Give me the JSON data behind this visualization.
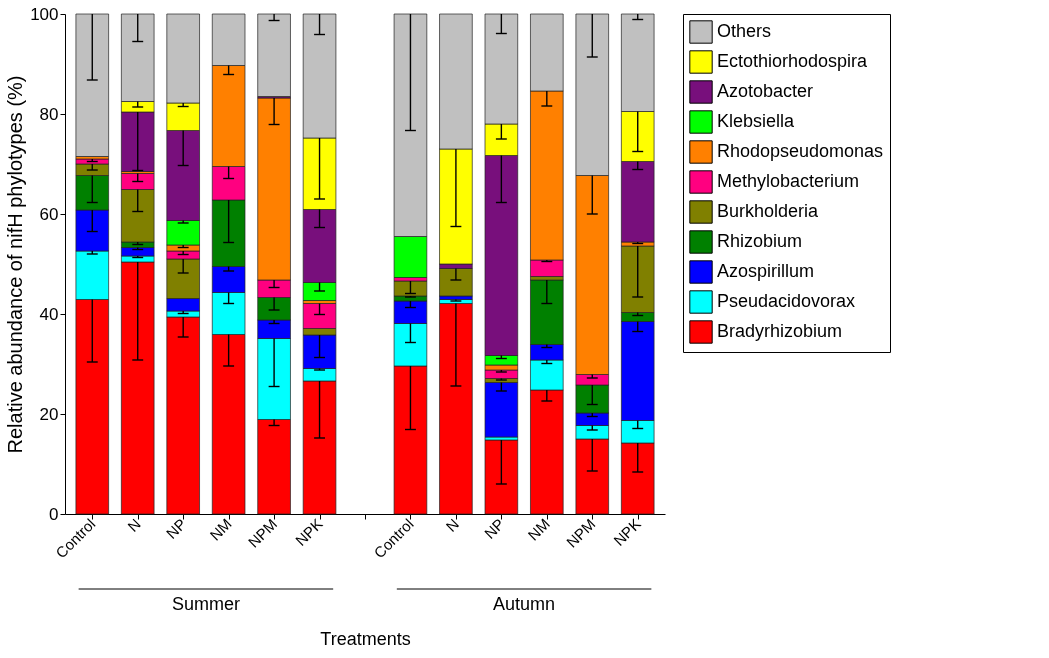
{
  "chart_data": {
    "type": "bar",
    "stacked": true,
    "xlabel": "Treatments",
    "ylabel": "Relative abundance of nifH phylotypes (%)",
    "categories": [
      "Control",
      "N",
      "NP",
      "NM",
      "NPM",
      "NPK",
      null,
      "Control",
      "N",
      "NP",
      "NM",
      "NPM",
      "NPK"
    ],
    "ylim": [
      0,
      100
    ],
    "yticks": [
      0,
      20,
      40,
      60,
      80,
      100
    ],
    "grid": false,
    "legend": "right",
    "annotations": [
      "Summer",
      "Autumn"
    ],
    "series": [
      {
        "name": "Bradyrhizobium",
        "color": "#ff0000",
        "values": [
          42.9,
          50.4,
          39.4,
          35.9,
          18.9,
          26.6,
          null,
          29.6,
          42.1,
          14.8,
          24.8,
          15.0,
          14.2
        ],
        "errors": [
          [
            30.4,
            42.9
          ],
          [
            30.8,
            50.4
          ],
          [
            35.4,
            39.4
          ],
          [
            29.6,
            35.9
          ],
          [
            17.7,
            18.9
          ],
          [
            15.2,
            26.6
          ],
          null,
          [
            16.9,
            29.6
          ],
          [
            25.6,
            42.1
          ],
          [
            6.0,
            14.8
          ],
          [
            22.6,
            24.8
          ],
          [
            8.6,
            15.0
          ],
          [
            8.4,
            14.2
          ]
        ]
      },
      {
        "name": "Pseudacidovorax",
        "color": "#00ffff",
        "values": [
          9.7,
          1.2,
          1.2,
          8.4,
          16.2,
          2.5,
          null,
          8.5,
          0.8,
          0.6,
          6.0,
          2.7,
          4.5
        ],
        "errors": [
          [
            52.0,
            52.6
          ],
          [
            51.3,
            51.6
          ],
          [
            40.1,
            40.6
          ],
          [
            42.1,
            44.3
          ],
          [
            25.5,
            35.1
          ],
          [
            28.8,
            29.1
          ],
          null,
          [
            34.3,
            38.1
          ],
          [
            42.6,
            42.9
          ],
          null,
          [
            30.1,
            30.8
          ],
          [
            16.8,
            17.7
          ],
          [
            17.1,
            18.7
          ]
        ]
      },
      {
        "name": "Azospirillum",
        "color": "#0000ff",
        "values": [
          8.2,
          1.7,
          2.5,
          5.2,
          3.7,
          6.7,
          null,
          4.5,
          0.7,
          10.9,
          3.1,
          2.5,
          19.8
        ],
        "errors": [
          [
            56.5,
            60.8
          ],
          [
            52.9,
            53.3
          ],
          null,
          [
            48.6,
            49.5
          ],
          [
            38.1,
            38.8
          ],
          [
            31.3,
            35.8
          ],
          null,
          [
            41.3,
            42.6
          ],
          null,
          [
            24.6,
            26.3
          ],
          [
            33.3,
            33.9
          ],
          [
            19.5,
            20.2
          ],
          [
            36.5,
            38.5
          ]
        ]
      },
      {
        "name": "Rhizobium",
        "color": "#008000",
        "values": [
          6.9,
          1.1,
          0,
          13.3,
          4.5,
          0,
          null,
          1.0,
          0,
          0,
          12.9,
          5.6,
          1.8
        ],
        "errors": [
          [
            62.3,
            67.7
          ],
          [
            53.9,
            54.4
          ],
          null,
          [
            54.3,
            62.8
          ],
          [
            40.8,
            43.3
          ],
          null,
          null,
          [
            43.4,
            43.6
          ],
          null,
          null,
          [
            42.1,
            46.8
          ],
          [
            21.9,
            25.8
          ],
          [
            39.7,
            40.3
          ]
        ]
      },
      {
        "name": "Burkholderia",
        "color": "#808000",
        "values": [
          2.3,
          10.5,
          7.9,
          0,
          0,
          1.3,
          null,
          3.0,
          5.5,
          0.8,
          0.7,
          0,
          13.3
        ],
        "errors": [
          [
            68.8,
            70.0
          ],
          [
            60.5,
            64.9
          ],
          [
            48.2,
            51.0
          ],
          null,
          null,
          null,
          null,
          [
            44.1,
            46.6
          ],
          [
            46.8,
            49.1
          ],
          [
            26.8,
            27.1
          ],
          null,
          null,
          [
            43.4,
            53.6
          ]
        ]
      },
      {
        "name": "Methylobacterium",
        "color": "#ff0080",
        "values": [
          1.0,
          3.2,
          1.6,
          6.7,
          3.5,
          5.0,
          null,
          0.7,
          0,
          1.7,
          3.3,
          2.1,
          0
        ],
        "errors": [
          [
            70.5,
            71.0
          ],
          [
            66.5,
            68.1
          ],
          [
            51.9,
            52.6
          ],
          [
            67.1,
            69.5
          ],
          [
            45.3,
            46.8
          ],
          [
            39.9,
            42.1
          ],
          null,
          null,
          null,
          [
            28.4,
            28.8
          ],
          [
            50.5,
            50.8
          ],
          [
            27.2,
            27.9
          ],
          null
        ]
      },
      {
        "name": "Rhodopseudomonas",
        "color": "#ff8000",
        "values": [
          0.5,
          0.4,
          1.2,
          20.2,
          36.4,
          0.6,
          null,
          null,
          0,
          1.0,
          33.8,
          39.8,
          0.8
        ],
        "errors": [
          null,
          null,
          [
            53.3,
            53.8
          ],
          [
            87.9,
            89.7
          ],
          [
            77.9,
            83.2
          ],
          null,
          null,
          null,
          null,
          null,
          [
            81.6,
            84.6
          ],
          [
            60.0,
            67.7
          ],
          [
            54.1,
            54.4
          ]
        ]
      },
      {
        "name": "Klebsiella",
        "color": "#00ff00",
        "values": [
          0,
          0,
          4.9,
          0,
          0,
          3.6,
          null,
          8.2,
          0,
          1.9,
          0,
          0,
          0
        ],
        "errors": [
          null,
          null,
          [
            58.2,
            58.7
          ],
          null,
          null,
          [
            44.6,
            46.3
          ],
          null,
          null,
          null,
          [
            31.1,
            31.7
          ],
          null,
          null,
          null
        ]
      },
      {
        "name": "Azotobacter",
        "color": "#780f7c",
        "values": [
          null,
          11.9,
          18.0,
          0,
          0.3,
          14.6,
          null,
          0,
          0.9,
          40.0,
          0,
          0,
          16.1
        ],
        "errors": [
          null,
          [
            68.7,
            80.4
          ],
          [
            69.7,
            76.7
          ],
          null,
          null,
          [
            57.3,
            60.9
          ],
          null,
          null,
          null,
          [
            62.3,
            71.7
          ],
          null,
          null,
          [
            68.9,
            70.5
          ]
        ]
      },
      {
        "name": "Ectothiorhodospira",
        "color": "#ffff00",
        "values": [
          0,
          2.1,
          5.5,
          0,
          0,
          14.3,
          null,
          0,
          23.0,
          6.3,
          0,
          0,
          10.0
        ],
        "errors": [
          null,
          [
            81.4,
            82.5
          ],
          [
            81.5,
            82.2
          ],
          null,
          null,
          [
            63.0,
            75.2
          ],
          null,
          null,
          [
            57.5,
            73.0
          ],
          [
            75.0,
            78.0
          ],
          null,
          null,
          [
            72.5,
            80.5
          ]
        ]
      },
      {
        "name": "Others",
        "color": "#c0c0c0",
        "values": [
          28.5,
          17.5,
          17.8,
          10.3,
          16.5,
          24.8,
          null,
          44.5,
          27.0,
          22.0,
          15.4,
          32.3,
          19.5
        ],
        "errors": [
          [
            86.8,
            100
          ],
          [
            94.5,
            100
          ],
          null,
          null,
          [
            98.7,
            100
          ],
          [
            95.9,
            100
          ],
          null,
          [
            76.7,
            100
          ],
          null,
          [
            96.1,
            100
          ],
          null,
          [
            91.4,
            100
          ],
          [
            98.9,
            100
          ]
        ]
      }
    ]
  }
}
